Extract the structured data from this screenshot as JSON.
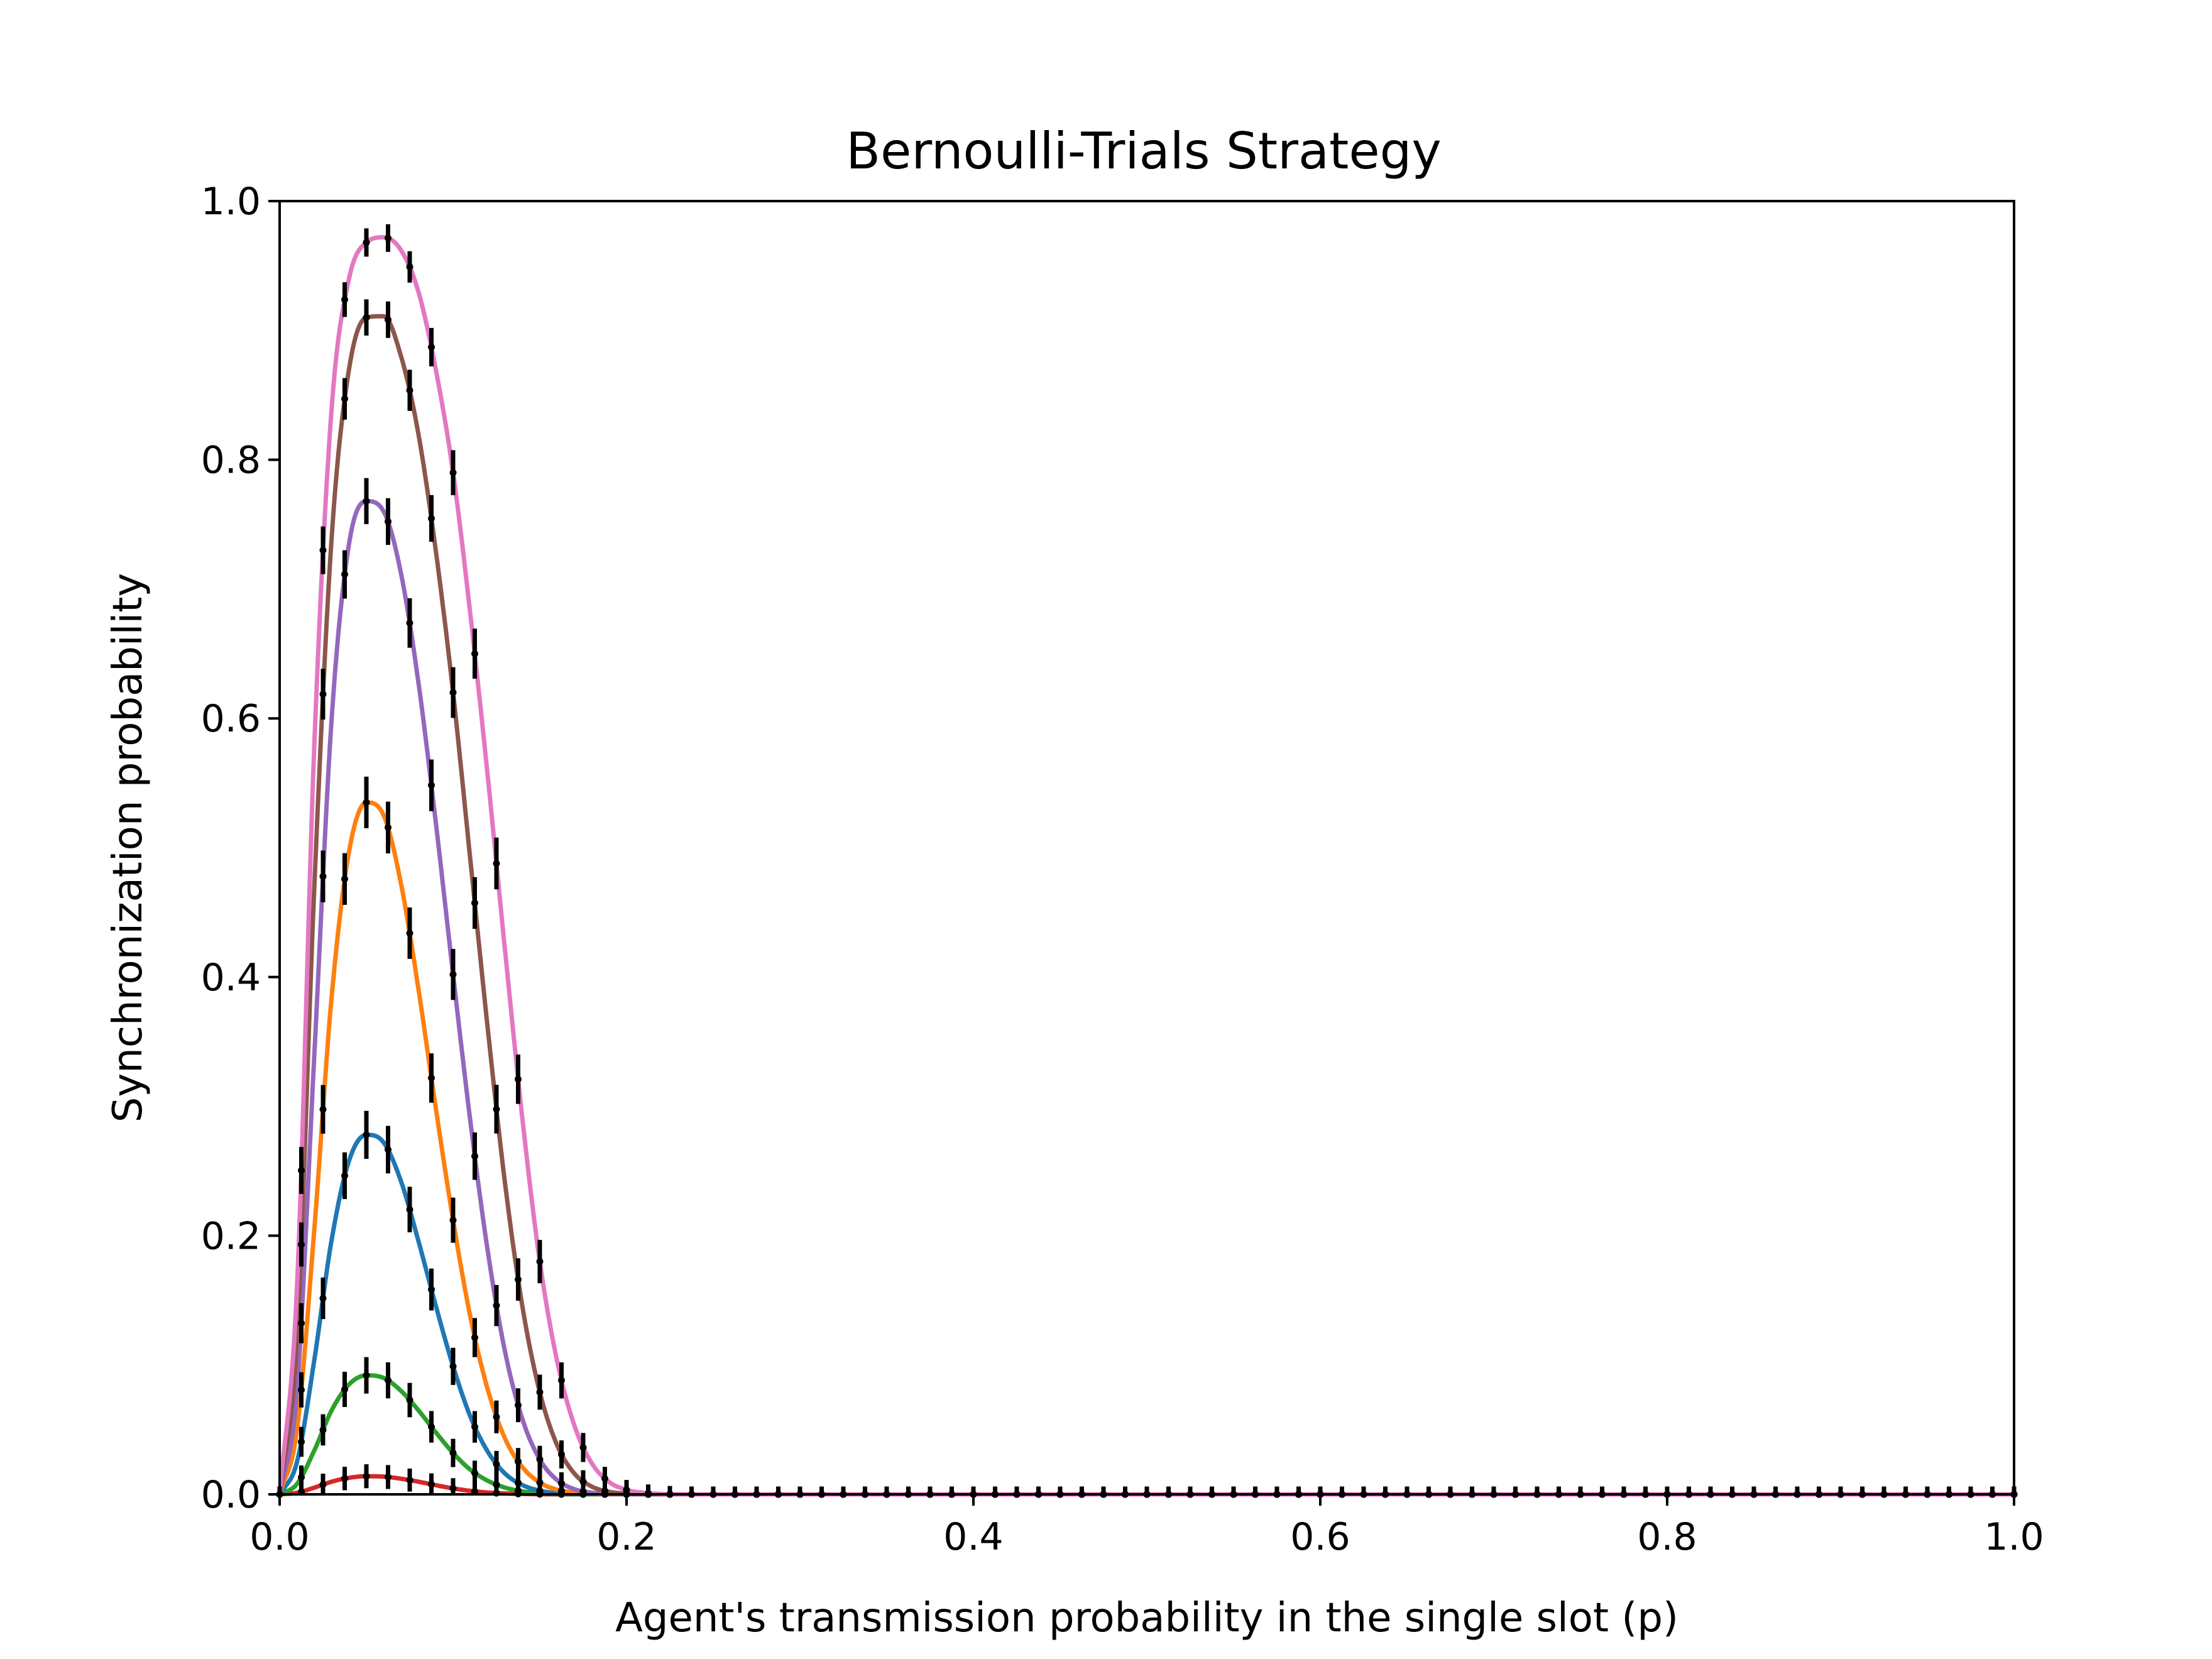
{
  "chart_data": {
    "type": "line",
    "title": "Bernoulli-Trials Strategy",
    "xlabel": "Agent's transmission probability in the single slot (p)",
    "ylabel": "Synchronization probability",
    "xlim": [
      0.0,
      1.0
    ],
    "ylim": [
      0.0,
      1.0
    ],
    "xticks": [
      "0.0",
      "0.2",
      "0.4",
      "0.6",
      "0.8",
      "1.0"
    ],
    "yticks": [
      "0.0",
      "0.2",
      "0.4",
      "0.6",
      "0.8",
      "1.0"
    ],
    "grid": false,
    "legend": "none",
    "x": [
      0.0,
      0.01,
      0.02,
      0.03,
      0.04,
      0.05,
      0.06,
      0.07,
      0.08,
      0.09,
      0.1,
      0.11,
      0.12,
      0.13,
      0.14,
      0.15,
      0.16,
      0.17,
      0.18,
      0.19,
      0.2,
      0.21,
      0.22,
      0.23,
      0.24,
      0.25,
      0.3,
      0.4,
      0.5,
      0.6,
      0.7,
      0.8,
      0.9,
      1.0
    ],
    "series": [
      {
        "color": "#d62728",
        "peak": 0.014,
        "values": [
          0.0,
          0.0012,
          0.0052,
          0.0098,
          0.0128,
          0.014,
          0.0137,
          0.0121,
          0.0098,
          0.0071,
          0.0046,
          0.0027,
          0.0014,
          0.0007,
          0.0003,
          0.0001,
          0.0,
          0.0,
          0.0,
          0.0,
          0.0,
          0.0,
          0.0,
          0.0,
          0.0,
          0.0,
          0.0,
          0.0,
          0.0,
          0.0,
          0.0,
          0.0,
          0.0,
          0.0
        ]
      },
      {
        "color": "#2ca02c",
        "peak": 0.092,
        "values": [
          0.0,
          0.008,
          0.034,
          0.065,
          0.085,
          0.092,
          0.09,
          0.08,
          0.065,
          0.048,
          0.032,
          0.019,
          0.0105,
          0.0052,
          0.0023,
          0.0009,
          0.0003,
          0.0001,
          0.0,
          0.0,
          0.0,
          0.0,
          0.0,
          0.0,
          0.0,
          0.0,
          0.0,
          0.0,
          0.0,
          0.0,
          0.0,
          0.0,
          0.0,
          0.0
        ]
      },
      {
        "color": "#1f77b4",
        "peak": 0.278,
        "values": [
          0.0,
          0.025,
          0.104,
          0.197,
          0.258,
          0.278,
          0.272,
          0.242,
          0.196,
          0.146,
          0.099,
          0.06,
          0.033,
          0.016,
          0.0072,
          0.0028,
          0.001,
          0.0003,
          0.0001,
          0.0,
          0.0,
          0.0,
          0.0,
          0.0,
          0.0,
          0.0,
          0.0,
          0.0,
          0.0,
          0.0,
          0.0,
          0.0,
          0.0,
          0.0
        ]
      },
      {
        "color": "#ff7f0e",
        "peak": 0.535,
        "values": [
          0.0,
          0.05,
          0.205,
          0.385,
          0.497,
          0.535,
          0.525,
          0.472,
          0.391,
          0.299,
          0.212,
          0.137,
          0.081,
          0.043,
          0.021,
          0.0091,
          0.0036,
          0.0013,
          0.0004,
          0.0001,
          0.0,
          0.0,
          0.0,
          0.0,
          0.0,
          0.0,
          0.0,
          0.0,
          0.0,
          0.0,
          0.0,
          0.0,
          0.0,
          0.0
        ]
      },
      {
        "color": "#9467bd",
        "peak": 0.768,
        "values": [
          0.0,
          0.08,
          0.34,
          0.6,
          0.735,
          0.768,
          0.76,
          0.712,
          0.628,
          0.52,
          0.402,
          0.288,
          0.188,
          0.11,
          0.058,
          0.027,
          0.011,
          0.004,
          0.0013,
          0.0004,
          0.0001,
          0.0,
          0.0,
          0.0,
          0.0,
          0.0,
          0.0,
          0.0,
          0.0,
          0.0,
          0.0,
          0.0,
          0.0,
          0.0
        ]
      },
      {
        "color": "#8c564b",
        "peak": 0.912,
        "values": [
          0.0,
          0.12,
          0.47,
          0.74,
          0.87,
          0.91,
          0.911,
          0.88,
          0.82,
          0.73,
          0.62,
          0.49,
          0.36,
          0.24,
          0.145,
          0.079,
          0.038,
          0.016,
          0.006,
          0.002,
          0.0006,
          0.0001,
          0.0,
          0.0,
          0.0,
          0.0,
          0.0,
          0.0,
          0.0,
          0.0,
          0.0,
          0.0,
          0.0,
          0.0
        ]
      },
      {
        "color": "#e377c2",
        "peak": 0.972,
        "values": [
          0.0,
          0.16,
          0.58,
          0.84,
          0.94,
          0.968,
          0.972,
          0.962,
          0.93,
          0.87,
          0.79,
          0.68,
          0.555,
          0.42,
          0.29,
          0.18,
          0.103,
          0.053,
          0.024,
          0.0095,
          0.0035,
          0.0012,
          0.0003,
          0.0001,
          0.0,
          0.0,
          0.0,
          0.0,
          0.0,
          0.0,
          0.0,
          0.0,
          0.0,
          0.0
        ]
      }
    ]
  }
}
